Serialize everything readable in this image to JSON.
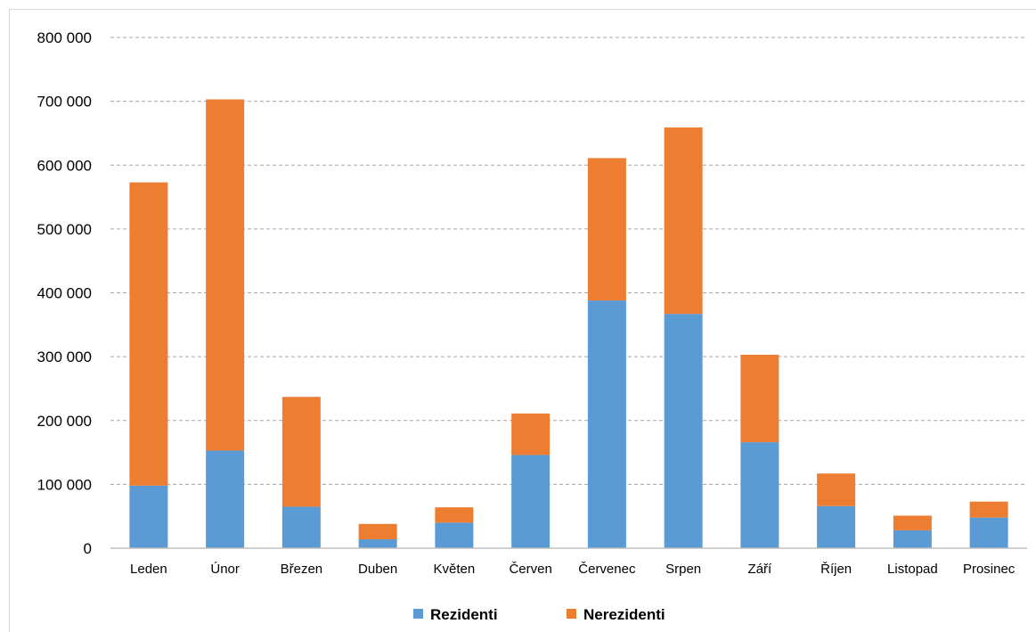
{
  "chart_data": {
    "type": "bar",
    "stacked": true,
    "categories": [
      "Leden",
      "Únor",
      "Březen",
      "Duben",
      "Květen",
      "Červen",
      "Červenec",
      "Srpen",
      "Září",
      "Říjen",
      "Listopad",
      "Prosinec"
    ],
    "series": [
      {
        "name": "Rezidenti",
        "color": "#5b9bd5",
        "values": [
          98000,
          153000,
          65000,
          14000,
          40000,
          146000,
          388000,
          367000,
          166000,
          66000,
          28000,
          48000
        ]
      },
      {
        "name": "Nerezidenti",
        "color": "#ed7d31",
        "values": [
          475000,
          550000,
          172000,
          24000,
          24000,
          65000,
          223000,
          292000,
          137000,
          51000,
          23000,
          25000
        ]
      }
    ],
    "yticks": [
      "0",
      "100 000",
      "200 000",
      "300 000",
      "400 000",
      "500 000",
      "600 000",
      "700 000",
      "800 000"
    ],
    "ylim": [
      0,
      800000
    ],
    "grid": true,
    "legend_position": "bottom"
  }
}
